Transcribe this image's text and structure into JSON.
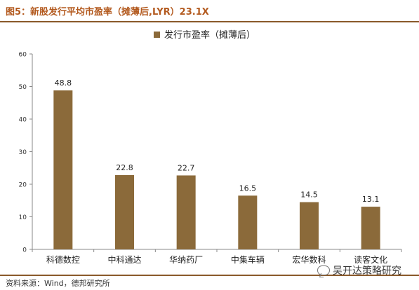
{
  "figure": {
    "title": "图5：新股发行平均市盈率（摊薄后,LYR）23.1X",
    "source": "资料来源：Wind，德邦研究所",
    "watermark": "吴开达策略研究"
  },
  "colors": {
    "bar": "#8b6a3a",
    "title": "#b35a1f",
    "rule": "#8a5a2b"
  },
  "chart_data": {
    "type": "bar",
    "title": "",
    "xlabel": "",
    "ylabel": "",
    "categories": [
      "科德数控",
      "中科通达",
      "华纳药厂",
      "中集车辆",
      "宏华数科",
      "读客文化"
    ],
    "series": [
      {
        "name": "发行市盈率（摊薄后）",
        "values": [
          48.8,
          22.8,
          22.7,
          16.5,
          14.5,
          13.1
        ]
      }
    ],
    "data_labels": [
      "48.8",
      "22.8",
      "22.7",
      "16.5",
      "14.5",
      "13.1"
    ],
    "yticks": [
      "0",
      "10",
      "20",
      "30",
      "40",
      "50",
      "60"
    ],
    "ylim": [
      0,
      60
    ],
    "grid": false,
    "legend": "top-center"
  }
}
